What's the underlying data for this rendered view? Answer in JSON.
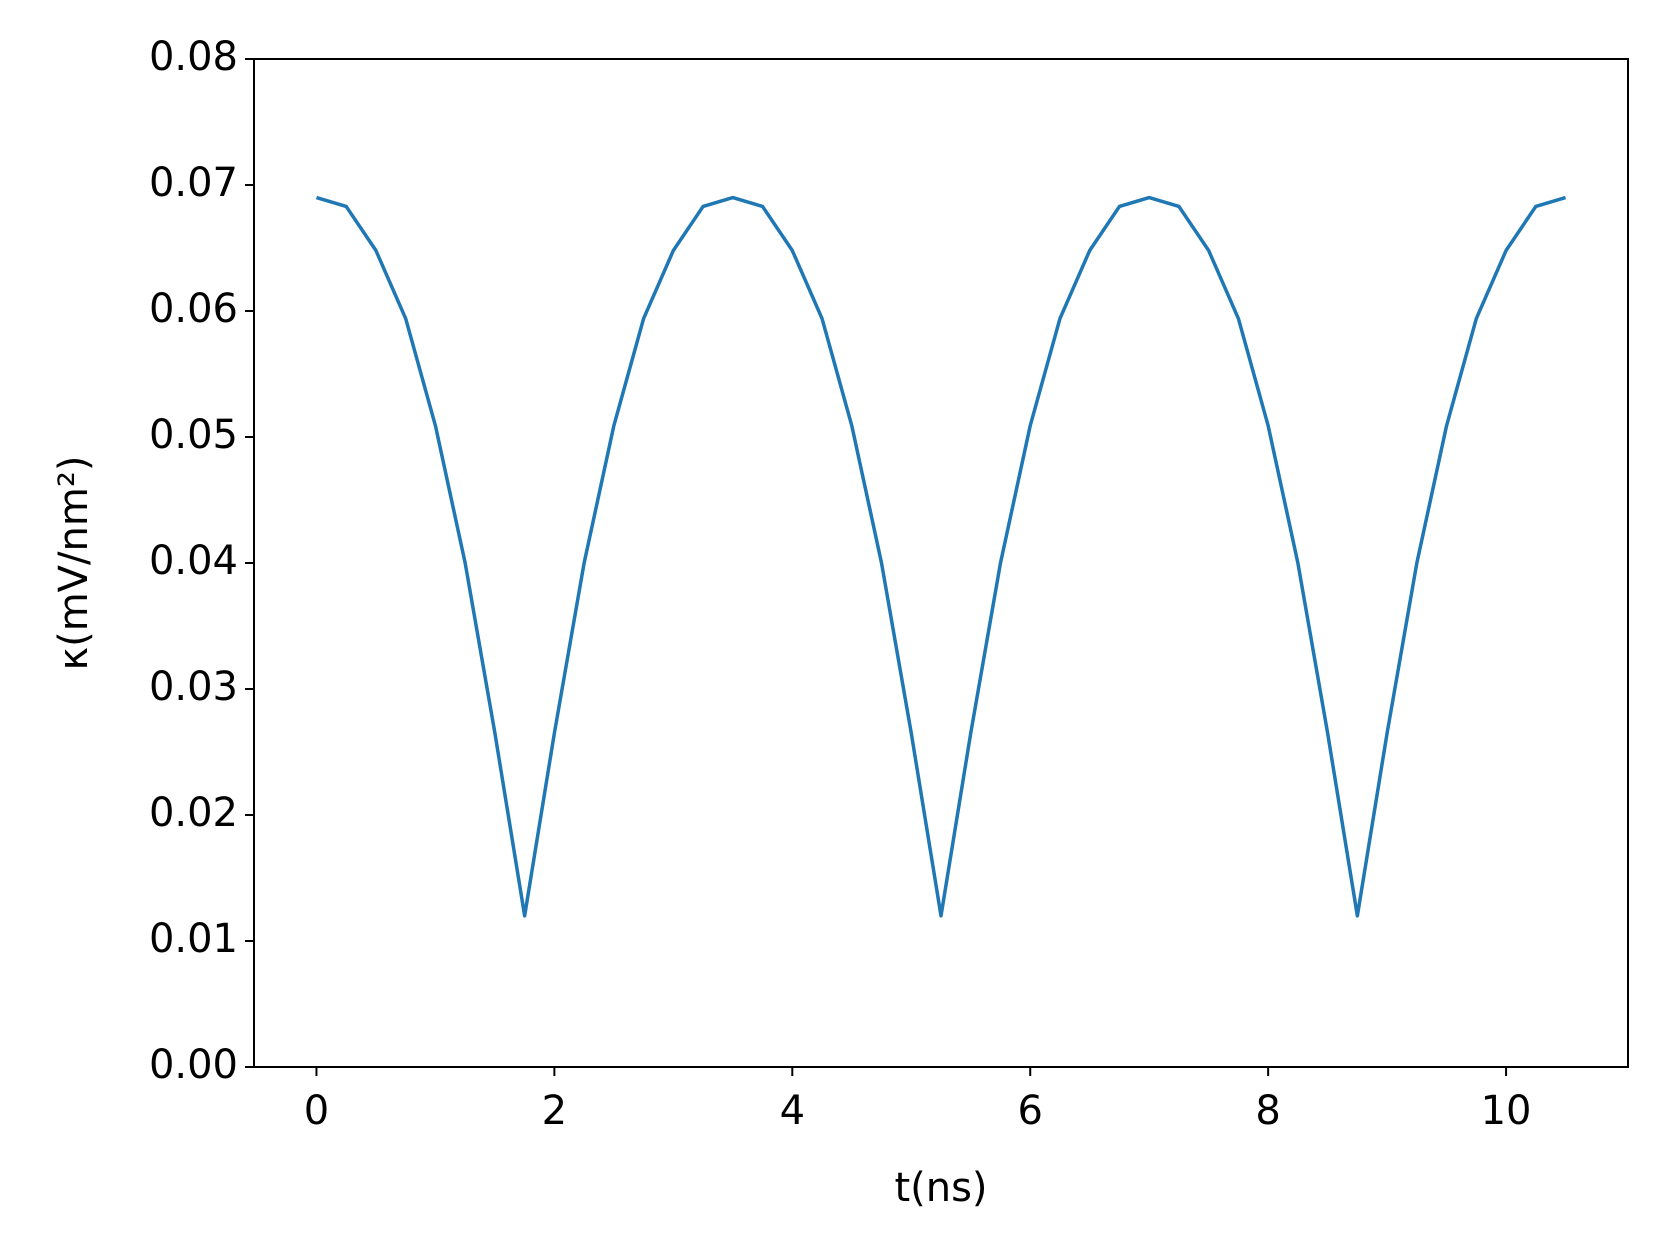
{
  "chart_data": {
    "type": "line",
    "xlabel": "t(ns)",
    "ylabel": "κ(mV/nm²)",
    "x": [
      0,
      0.25,
      0.5,
      0.75,
      1,
      1.25,
      1.5,
      1.75,
      2,
      2.25,
      2.5,
      2.75,
      3,
      3.25,
      3.5,
      3.75,
      4,
      4.25,
      4.5,
      4.75,
      5,
      5.25,
      5.5,
      5.75,
      6,
      6.25,
      6.5,
      6.75,
      7,
      7.25,
      7.5,
      7.75,
      8,
      8.25,
      8.5,
      8.75,
      9,
      9.25,
      9.5,
      9.75,
      10,
      10.25,
      10.5
    ],
    "series": [
      {
        "color": "#1f77b4",
        "values": [
          0.069,
          0.0683,
          0.0648,
          0.0594,
          0.0509,
          0.04,
          0.0265,
          0.012,
          0.0265,
          0.04,
          0.0509,
          0.0594,
          0.0648,
          0.0683,
          0.069,
          0.0683,
          0.0648,
          0.0594,
          0.0509,
          0.04,
          0.0265,
          0.012,
          0.0265,
          0.04,
          0.0509,
          0.0594,
          0.0648,
          0.0683,
          0.069,
          0.0683,
          0.0648,
          0.0594,
          0.0509,
          0.04,
          0.0265,
          0.012,
          0.0265,
          0.04,
          0.0509,
          0.0594,
          0.0648,
          0.0683,
          0.069
        ]
      }
    ],
    "xlim": [
      -0.525,
      11.025
    ],
    "xticks": [
      0,
      2,
      4,
      6,
      8,
      10
    ],
    "ylim": [
      0,
      0.08
    ],
    "yticks": [
      {
        "value": 0,
        "label": "0.00"
      },
      0.01,
      0.02,
      0.03,
      0.04,
      0.05,
      0.06,
      0.07,
      0.08
    ],
    "grid": false
  }
}
